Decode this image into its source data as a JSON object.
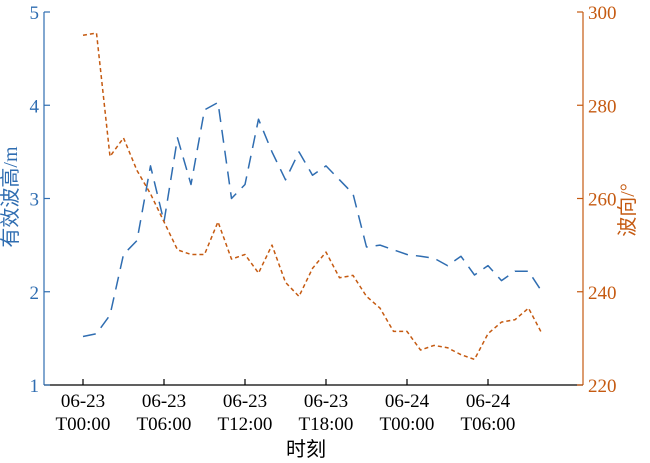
{
  "chart_data": {
    "type": "line",
    "xlabel": "时刻",
    "x_ticks": [
      {
        "hours": 0,
        "line1": "06-23",
        "line2": "T00:00"
      },
      {
        "hours": 6,
        "line1": "06-23",
        "line2": "T06:00"
      },
      {
        "hours": 12,
        "line1": "06-23",
        "line2": "T12:00"
      },
      {
        "hours": 18,
        "line1": "06-23",
        "line2": "T18:00"
      },
      {
        "hours": 24,
        "line1": "06-24",
        "line2": "T00:00"
      },
      {
        "hours": 30,
        "line1": "06-24",
        "line2": "T06:00"
      }
    ],
    "y_left": {
      "label": "有效波高/m",
      "range": [
        1,
        5
      ],
      "ticks": [
        "1",
        "2",
        "3",
        "4",
        "5"
      ],
      "color": "#2f6db1"
    },
    "y_right": {
      "label": "波向/°",
      "range": [
        220,
        300
      ],
      "ticks": [
        "220",
        "240",
        "260",
        "280",
        "300"
      ],
      "color": "#c55a11"
    },
    "series": [
      {
        "axis": "left",
        "style": "long-dash",
        "color": "#2f6db1",
        "x": [
          0,
          1,
          2,
          3,
          4,
          5,
          6,
          7,
          8,
          9,
          10,
          11,
          12,
          13,
          14,
          15,
          16,
          17,
          18,
          19,
          20,
          21,
          22,
          23,
          24,
          25,
          26,
          27,
          28,
          29,
          30,
          31,
          32,
          33,
          34
        ],
        "y": [
          1.52,
          1.55,
          1.75,
          2.4,
          2.55,
          3.35,
          2.75,
          3.65,
          3.15,
          3.95,
          4.03,
          3.0,
          3.15,
          3.85,
          3.5,
          3.2,
          3.5,
          3.25,
          3.35,
          3.2,
          3.05,
          2.48,
          2.5,
          2.45,
          2.4,
          2.38,
          2.36,
          2.28,
          2.38,
          2.18,
          2.28,
          2.12,
          2.22,
          2.22,
          2.0
        ]
      },
      {
        "axis": "right",
        "style": "short-dash",
        "color": "#c55a11",
        "x": [
          0,
          1,
          2,
          3,
          4,
          5,
          6,
          7,
          8,
          9,
          10,
          11,
          12,
          13,
          14,
          15,
          16,
          17,
          18,
          19,
          20,
          21,
          22,
          23,
          24,
          25,
          26,
          27,
          28,
          29,
          30,
          31,
          32,
          33,
          34
        ],
        "y": [
          295,
          295.5,
          269,
          273,
          266,
          261,
          255,
          249,
          248,
          248,
          255,
          247,
          248,
          244,
          250,
          242,
          239,
          245,
          248.5,
          243,
          243.5,
          239,
          236.5,
          231.5,
          231.5,
          227.5,
          228.5,
          228,
          226.5,
          225.5,
          231,
          233.5,
          234,
          236.5,
          231
        ]
      }
    ]
  }
}
